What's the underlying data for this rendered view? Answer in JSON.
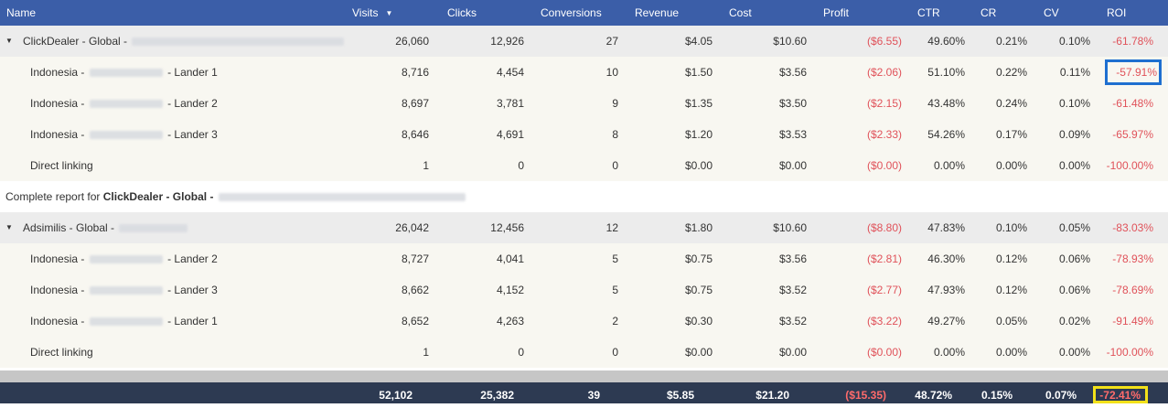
{
  "header": {
    "name": "Name",
    "visits": "Visits",
    "clicks": "Clicks",
    "conversions": "Conversions",
    "revenue": "Revenue",
    "cost": "Cost",
    "profit": "Profit",
    "ctr": "CTR",
    "cr": "CR",
    "cv": "CV",
    "roi": "ROI"
  },
  "groups": [
    {
      "name": "ClickDealer - Global -",
      "visits": "26,060",
      "clicks": "12,926",
      "conversions": "27",
      "revenue": "$4.05",
      "cost": "$10.60",
      "profit": "($6.55)",
      "ctr": "49.60%",
      "cr": "0.21%",
      "cv": "0.10%",
      "roi": "-61.78%",
      "rows": [
        {
          "prefix": "Indonesia -",
          "suffix": "- Lander 1",
          "visits": "8,716",
          "clicks": "4,454",
          "conversions": "10",
          "revenue": "$1.50",
          "cost": "$3.56",
          "profit": "($2.06)",
          "ctr": "51.10%",
          "cr": "0.22%",
          "cv": "0.11%",
          "roi": "-57.91%"
        },
        {
          "prefix": "Indonesia -",
          "suffix": "- Lander 2",
          "visits": "8,697",
          "clicks": "3,781",
          "conversions": "9",
          "revenue": "$1.35",
          "cost": "$3.50",
          "profit": "($2.15)",
          "ctr": "43.48%",
          "cr": "0.24%",
          "cv": "0.10%",
          "roi": "-61.48%"
        },
        {
          "prefix": "Indonesia -",
          "suffix": "- Lander 3",
          "visits": "8,646",
          "clicks": "4,691",
          "conversions": "8",
          "revenue": "$1.20",
          "cost": "$3.53",
          "profit": "($2.33)",
          "ctr": "54.26%",
          "cr": "0.17%",
          "cv": "0.09%",
          "roi": "-65.97%"
        },
        {
          "prefix": "Direct linking",
          "suffix": "",
          "visits": "1",
          "clicks": "0",
          "conversions": "0",
          "revenue": "$0.00",
          "cost": "$0.00",
          "profit": "($0.00)",
          "ctr": "0.00%",
          "cr": "0.00%",
          "cv": "0.00%",
          "roi": "-100.00%"
        }
      ]
    },
    {
      "name": "Adsimilis - Global -",
      "visits": "26,042",
      "clicks": "12,456",
      "conversions": "12",
      "revenue": "$1.80",
      "cost": "$10.60",
      "profit": "($8.80)",
      "ctr": "47.83%",
      "cr": "0.10%",
      "cv": "0.05%",
      "roi": "-83.03%",
      "rows": [
        {
          "prefix": "Indonesia -",
          "suffix": "- Lander 2",
          "visits": "8,727",
          "clicks": "4,041",
          "conversions": "5",
          "revenue": "$0.75",
          "cost": "$3.56",
          "profit": "($2.81)",
          "ctr": "46.30%",
          "cr": "0.12%",
          "cv": "0.06%",
          "roi": "-78.93%"
        },
        {
          "prefix": "Indonesia -",
          "suffix": "- Lander 3",
          "visits": "8,662",
          "clicks": "4,152",
          "conversions": "5",
          "revenue": "$0.75",
          "cost": "$3.52",
          "profit": "($2.77)",
          "ctr": "47.93%",
          "cr": "0.12%",
          "cv": "0.06%",
          "roi": "-78.69%"
        },
        {
          "prefix": "Indonesia -",
          "suffix": "- Lander 1",
          "visits": "8,652",
          "clicks": "4,263",
          "conversions": "2",
          "revenue": "$0.30",
          "cost": "$3.52",
          "profit": "($3.22)",
          "ctr": "49.27%",
          "cr": "0.05%",
          "cv": "0.02%",
          "roi": "-91.49%"
        },
        {
          "prefix": "Direct linking",
          "suffix": "",
          "visits": "1",
          "clicks": "0",
          "conversions": "0",
          "revenue": "$0.00",
          "cost": "$0.00",
          "profit": "($0.00)",
          "ctr": "0.00%",
          "cr": "0.00%",
          "cv": "0.00%",
          "roi": "-100.00%"
        }
      ]
    }
  ],
  "report": {
    "prefix": "Complete report for",
    "bold": "ClickDealer - Global -"
  },
  "totals": {
    "visits": "52,102",
    "clicks": "25,382",
    "conversions": "39",
    "revenue": "$5.85",
    "cost": "$21.20",
    "profit": "($15.35)",
    "ctr": "48.72%",
    "cr": "0.15%",
    "cv": "0.07%",
    "roi": "-72.41%"
  },
  "colors": {
    "header": "#3b5ea8",
    "footer": "#2d3a52",
    "negative": "#e0525a",
    "highlight_blue": "#1e6fd0",
    "highlight_yellow": "#f2e11a"
  }
}
